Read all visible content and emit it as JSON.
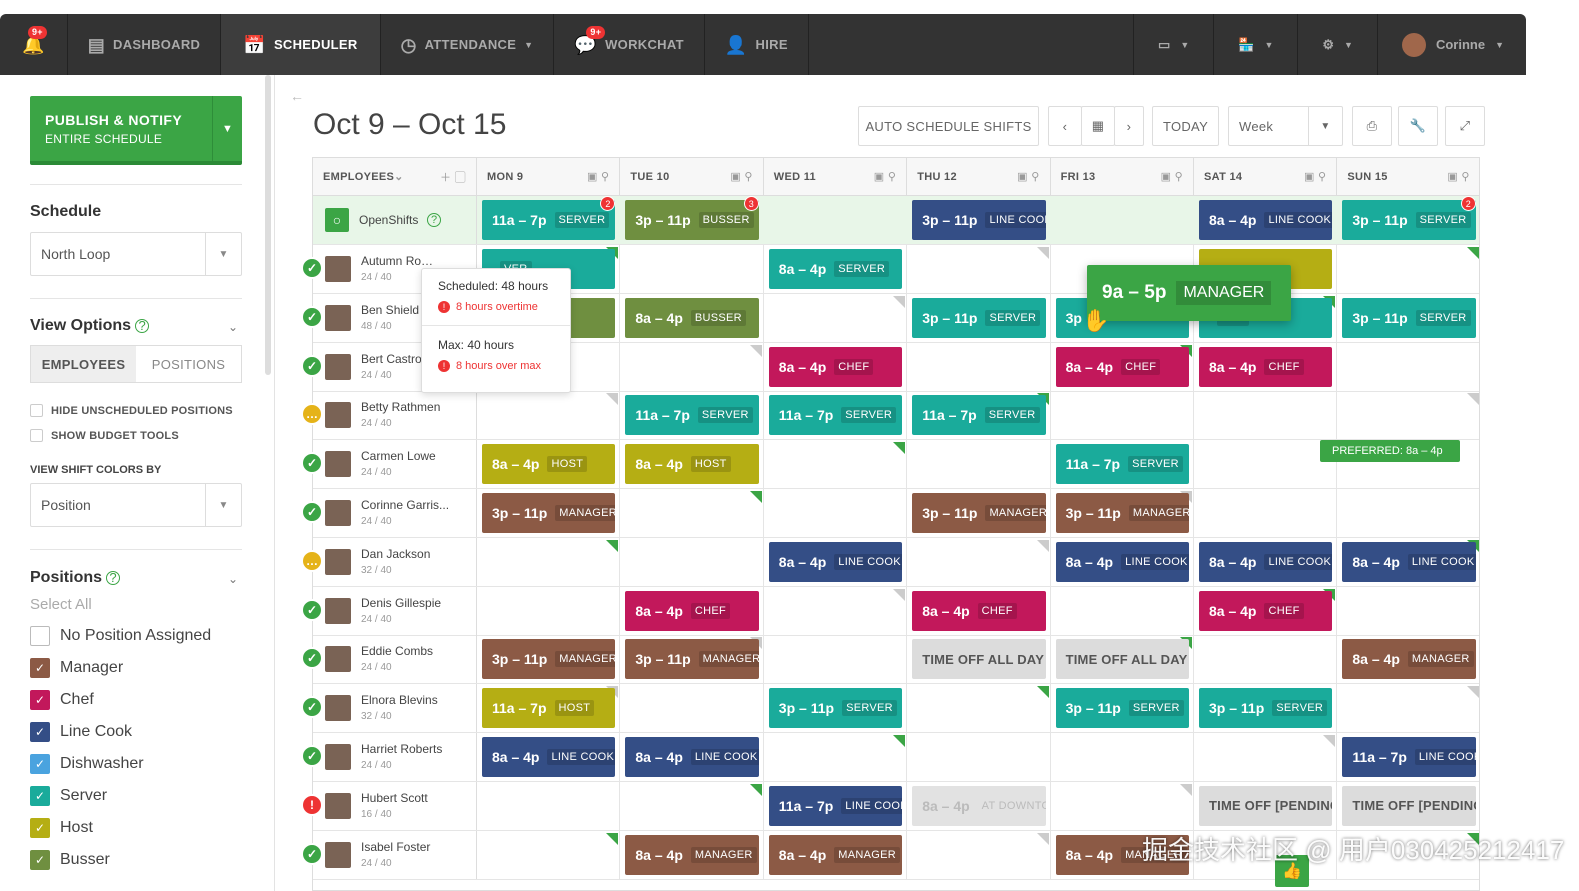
{
  "nav": {
    "notif_badge": "9+",
    "dashboard": "DASHBOARD",
    "scheduler": "SCHEDULER",
    "attendance": "ATTENDANCE",
    "workchat": "WORKCHAT",
    "workchat_badge": "9+",
    "hire": "HIRE",
    "user": "Corinne"
  },
  "sidebar": {
    "publish_l1": "PUBLISH & NOTIFY",
    "publish_l2": "ENTIRE SCHEDULE",
    "schedule_title": "Schedule",
    "schedule_value": "North Loop",
    "view_options": "View Options",
    "toggle_employees": "EMPLOYEES",
    "toggle_positions": "POSITIONS",
    "hide_unscheduled": "HIDE UNSCHEDULED POSITIONS",
    "show_budget": "SHOW BUDGET TOOLS",
    "view_colors_by": "VIEW SHIFT COLORS BY",
    "color_value": "Position",
    "positions_title": "Positions",
    "select_all": "Select All",
    "positions": [
      {
        "label": "No Position Assigned",
        "color": "#ffffff"
      },
      {
        "label": "Manager",
        "color": "#8c5a45"
      },
      {
        "label": "Chef",
        "color": "#c2185b"
      },
      {
        "label": "Line Cook",
        "color": "#344e86"
      },
      {
        "label": "Dishwasher",
        "color": "#4aa3df"
      },
      {
        "label": "Server",
        "color": "#1aab9b"
      },
      {
        "label": "Host",
        "color": "#b5ae14"
      },
      {
        "label": "Busser",
        "color": "#6f8f40"
      }
    ]
  },
  "header": {
    "title": "Oct 9 – Oct 15",
    "auto": "AUTO SCHEDULE SHIFTS",
    "today": "TODAY",
    "view": "Week"
  },
  "columns": {
    "employees": "EMPLOYEES",
    "days": [
      "MON 9",
      "TUE 10",
      "WED 11",
      "THU 12",
      "FRI 13",
      "SAT 14",
      "SUN 15"
    ]
  },
  "openshifts": {
    "label": "OpenShifts",
    "shifts": [
      {
        "day": 0,
        "time": "11a – 7p",
        "pos": "SERVER",
        "color": "#1aab9b",
        "count": "2"
      },
      {
        "day": 1,
        "time": "3p – 11p",
        "pos": "BUSSER",
        "color": "#6f8f40",
        "count": "3"
      },
      {
        "day": 3,
        "time": "3p – 11p",
        "pos": "LINE COOK",
        "color": "#344e86"
      },
      {
        "day": 5,
        "time": "8a – 4p",
        "pos": "LINE COOK",
        "color": "#344e86"
      },
      {
        "day": 6,
        "time": "3p – 11p",
        "pos": "SERVER",
        "color": "#1aab9b",
        "count": "2"
      }
    ]
  },
  "employees": [
    {
      "name": "Autumn Ro…",
      "hours": "24 / 40",
      "status": "ok",
      "shifts": [
        {
          "day": 0,
          "time": "",
          "pos": "VER",
          "color": "#1aab9b"
        },
        {
          "day": 2,
          "time": "8a – 4p",
          "pos": "SERVER",
          "color": "#1aab9b"
        },
        {
          "day": 5,
          "time": "",
          "pos": "",
          "color": "#b5ae14"
        }
      ]
    },
    {
      "name": "Ben Shield",
      "hours": "48 / 40",
      "status": "ok",
      "shifts": [
        {
          "day": 0,
          "time": "",
          "pos": "ER",
          "color": "#6f8f40"
        },
        {
          "day": 1,
          "time": "8a – 4p",
          "pos": "BUSSER",
          "color": "#6f8f40"
        },
        {
          "day": 3,
          "time": "3p – 11p",
          "pos": "SERVER",
          "color": "#1aab9b"
        },
        {
          "day": 4,
          "time": "3p",
          "pos": "",
          "color": "#1aab9b"
        },
        {
          "day": 5,
          "time": "",
          "pos": "VER",
          "color": "#1aab9b"
        },
        {
          "day": 6,
          "time": "3p – 11p",
          "pos": "SERVER",
          "color": "#1aab9b"
        }
      ]
    },
    {
      "name": "Bert Castro",
      "hours": "24 / 40",
      "status": "ok",
      "shifts": [
        {
          "day": 2,
          "time": "8a – 4p",
          "pos": "CHEF",
          "color": "#c2185b"
        },
        {
          "day": 4,
          "time": "8a – 4p",
          "pos": "CHEF",
          "color": "#c2185b"
        },
        {
          "day": 5,
          "time": "8a – 4p",
          "pos": "CHEF",
          "color": "#c2185b"
        }
      ]
    },
    {
      "name": "Betty Rathmen",
      "hours": "24 / 40",
      "status": "pending",
      "shifts": [
        {
          "day": 1,
          "time": "11a – 7p",
          "pos": "SERVER",
          "color": "#1aab9b"
        },
        {
          "day": 2,
          "time": "11a – 7p",
          "pos": "SERVER",
          "color": "#1aab9b"
        },
        {
          "day": 3,
          "time": "11a – 7p",
          "pos": "SERVER",
          "color": "#1aab9b"
        }
      ]
    },
    {
      "name": "Carmen Lowe",
      "hours": "24 / 40",
      "status": "ok",
      "shifts": [
        {
          "day": 0,
          "time": "8a – 4p",
          "pos": "HOST",
          "color": "#b5ae14"
        },
        {
          "day": 1,
          "time": "8a – 4p",
          "pos": "HOST",
          "color": "#b5ae14"
        },
        {
          "day": 4,
          "time": "11a – 7p",
          "pos": "SERVER",
          "color": "#1aab9b"
        }
      ]
    },
    {
      "name": "Corinne Garris...",
      "hours": "24 / 40",
      "status": "ok",
      "shifts": [
        {
          "day": 0,
          "time": "3p – 11p",
          "pos": "MANAGER",
          "color": "#8c5a45"
        },
        {
          "day": 3,
          "time": "3p – 11p",
          "pos": "MANAGER",
          "color": "#8c5a45"
        },
        {
          "day": 4,
          "time": "3p – 11p",
          "pos": "MANAGER",
          "color": "#8c5a45"
        }
      ]
    },
    {
      "name": "Dan Jackson",
      "hours": "32 / 40",
      "status": "pending",
      "shifts": [
        {
          "day": 2,
          "time": "8a – 4p",
          "pos": "LINE COOK",
          "color": "#344e86"
        },
        {
          "day": 4,
          "time": "8a – 4p",
          "pos": "LINE COOK",
          "color": "#344e86"
        },
        {
          "day": 5,
          "time": "8a – 4p",
          "pos": "LINE COOK",
          "color": "#344e86"
        },
        {
          "day": 6,
          "time": "8a – 4p",
          "pos": "LINE COOK",
          "color": "#344e86"
        }
      ]
    },
    {
      "name": "Denis Gillespie",
      "hours": "24 / 40",
      "status": "ok",
      "shifts": [
        {
          "day": 1,
          "time": "8a – 4p",
          "pos": "CHEF",
          "color": "#c2185b"
        },
        {
          "day": 3,
          "time": "8a – 4p",
          "pos": "CHEF",
          "color": "#c2185b",
          "hatch": true
        },
        {
          "day": 5,
          "time": "8a – 4p",
          "pos": "CHEF",
          "color": "#c2185b",
          "hatch": true
        }
      ]
    },
    {
      "name": "Eddie Combs",
      "hours": "24 / 40",
      "status": "ok",
      "shifts": [
        {
          "day": 0,
          "time": "3p – 11p",
          "pos": "MANAGER",
          "color": "#8c5a45"
        },
        {
          "day": 1,
          "time": "3p – 11p",
          "pos": "MANAGER",
          "color": "#8c5a45"
        },
        {
          "day": 3,
          "time": "TIME OFF ALL DAY",
          "pos": "",
          "off": true
        },
        {
          "day": 4,
          "time": "TIME OFF ALL DAY",
          "pos": "",
          "off": true
        },
        {
          "day": 6,
          "time": "8a – 4p",
          "pos": "MANAGER",
          "color": "#8c5a45"
        }
      ]
    },
    {
      "name": "Elnora Blevins",
      "hours": "32 / 40",
      "status": "ok",
      "shifts": [
        {
          "day": 0,
          "time": "11a – 7p",
          "pos": "HOST",
          "color": "#b5ae14"
        },
        {
          "day": 2,
          "time": "3p – 11p",
          "pos": "SERVER",
          "color": "#1aab9b"
        },
        {
          "day": 4,
          "time": "3p – 11p",
          "pos": "SERVER",
          "color": "#1aab9b"
        },
        {
          "day": 5,
          "time": "3p – 11p",
          "pos": "SERVER",
          "color": "#1aab9b"
        }
      ]
    },
    {
      "name": "Harriet Roberts",
      "hours": "24 / 40",
      "status": "ok",
      "shifts": [
        {
          "day": 0,
          "time": "8a – 4p",
          "pos": "LINE COOK",
          "color": "#344e86",
          "hatch": true
        },
        {
          "day": 1,
          "time": "8a – 4p",
          "pos": "LINE COOK",
          "color": "#344e86",
          "hatch": true
        },
        {
          "day": 6,
          "time": "11a – 7p",
          "pos": "LINE COOK",
          "color": "#344e86"
        }
      ]
    },
    {
      "name": "Hubert Scott",
      "hours": "16 / 40",
      "status": "alert",
      "shifts": [
        {
          "day": 2,
          "time": "11a – 7p",
          "pos": "LINE COOK",
          "color": "#344e86"
        },
        {
          "day": 3,
          "time": "8a – 4p",
          "pos": "AT DOWNTO",
          "dis": true
        },
        {
          "day": 5,
          "time": "TIME OFF [PENDING]",
          "pos": "",
          "off": true,
          "hatch": true
        },
        {
          "day": 6,
          "time": "TIME OFF [PENDING]",
          "pos": "",
          "off": true,
          "hatch": true
        }
      ]
    },
    {
      "name": "Isabel Foster",
      "hours": "24 / 40",
      "status": "ok",
      "shifts": [
        {
          "day": 1,
          "time": "8a – 4p",
          "pos": "MANAGER",
          "color": "#8c5a45"
        },
        {
          "day": 2,
          "time": "8a – 4p",
          "pos": "MANAGER",
          "color": "#8c5a45"
        },
        {
          "day": 4,
          "time": "8a – 4p",
          "pos": "MANAGER",
          "color": "#8c5a45"
        }
      ]
    }
  ],
  "tooltip": {
    "scheduled": "Scheduled: 48 hours",
    "overtime": "8 hours overtime",
    "max": "Max: 40 hours",
    "overmax": "8 hours over max"
  },
  "drag": {
    "time": "9a – 5p",
    "pos": "MANAGER"
  },
  "preferred": "PREFERRED: 8a – 4p",
  "watermark": "掘金技术社区 @ 用户030425212417"
}
